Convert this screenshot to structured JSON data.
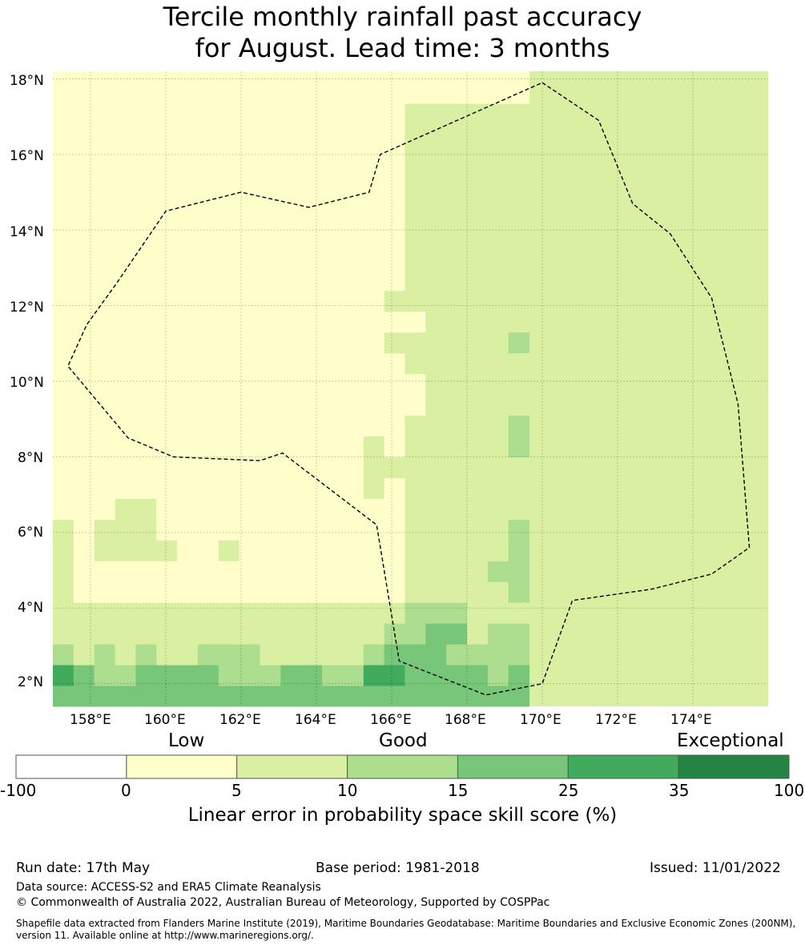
{
  "title": {
    "line1": "Tercile monthly rainfall past accuracy",
    "line2": "for August. Lead time: 3 months"
  },
  "map": {
    "lat_labels": [
      "18°N",
      "16°N",
      "14°N",
      "12°N",
      "10°N",
      "8°N",
      "6°N",
      "4°N",
      "2°N"
    ],
    "lon_labels": [
      "158°E",
      "160°E",
      "162°E",
      "164°E",
      "166°E",
      "168°E",
      "170°E",
      "172°E",
      "174°E"
    ],
    "lat_values": [
      18,
      16,
      14,
      12,
      10,
      8,
      6,
      4,
      2
    ],
    "lon_values": [
      158,
      160,
      162,
      164,
      166,
      168,
      170,
      172,
      174
    ],
    "extent": {
      "lon_min": 157.0,
      "lon_max": 176.0,
      "lat_min": 1.4,
      "lat_max": 18.2
    },
    "grid_lon_start": 157.0,
    "grid_lat_start": 1.4,
    "cell_deg": 0.55,
    "grid_rows": [
      "44444444444444444444444",
      "54334444333443355444434",
      "32323223332222234443333",
      "22222222222222223344233",
      "22222222222222222333222",
      "21111111111111111222223",
      "21111111111111111222233",
      "21222211211111111222223",
      "21222111111111111222223",
      "11122111111111111222222",
      "11111111111111121222222",
      "11111111111111122222222",
      "11111111111111121222223",
      "11111111111111111222223",
      "11111111111111111122222",
      "11111111111111111122222",
      "11111111111111111222222",
      "11111111111111112222223",
      "11111111111111111122222",
      "11111111111111112222222",
      "11111111111111111222222",
      "11111111111111111222222",
      "11111111111111111222222",
      "11111111111111111222222",
      "11111111111111111222222",
      "11111111111111111222222",
      "11111111111111111222222",
      "11111111111111111222222",
      "11111111111111111222222",
      "11111111111111111111111",
      "11111111111111111111111"
    ],
    "boundary": [
      [
        170.0,
        17.9
      ],
      [
        171.5,
        16.9
      ],
      [
        172.4,
        14.7
      ],
      [
        173.4,
        13.9
      ],
      [
        174.5,
        12.2
      ],
      [
        175.2,
        9.4
      ],
      [
        175.5,
        5.6
      ],
      [
        174.5,
        4.9
      ],
      [
        172.9,
        4.5
      ],
      [
        170.8,
        4.2
      ],
      [
        170.0,
        2.0
      ],
      [
        168.5,
        1.7
      ],
      [
        166.2,
        2.6
      ],
      [
        165.6,
        6.2
      ],
      [
        163.1,
        8.1
      ],
      [
        162.5,
        7.9
      ],
      [
        160.2,
        8.0
      ],
      [
        159.0,
        8.5
      ],
      [
        157.4,
        10.4
      ],
      [
        157.9,
        11.5
      ],
      [
        158.7,
        12.6
      ],
      [
        160.0,
        14.5
      ],
      [
        162.0,
        15.0
      ],
      [
        163.8,
        14.6
      ],
      [
        165.4,
        15.0
      ],
      [
        165.7,
        16.0
      ],
      [
        170.0,
        17.9
      ]
    ]
  },
  "legend": {
    "category_labels": [
      "Low",
      "Good",
      "Exceptional"
    ],
    "tick_labels": [
      "-100",
      "0",
      "5",
      "10",
      "15",
      "25",
      "35",
      "100"
    ],
    "colors": [
      "#ffffff",
      "#ffffcc",
      "#d9f0a3",
      "#addd8e",
      "#78c679",
      "#41ab5d",
      "#238443"
    ],
    "title": "Linear error in probability space skill score (%)"
  },
  "footer": {
    "run_date": "Run date: 17th May",
    "base_period": "Base period: 1981-2018",
    "issued": "Issued: 11/01/2022",
    "data_source": "Data source: ACCESS-S2 and ERA5 Climate Reanalysis",
    "copyright": "© Commonwealth of Australia 2022, Australian Bureau of Meteorology, Supported by COSPPac",
    "shapefile": "Shapefile data extracted from Flanders Marine Institute (2019), Maritime Boundaries Geodatabase: Maritime Boundaries and Exclusive Economic Zones (200NM), version 11. Available online at http://www.marineregions.org/."
  }
}
